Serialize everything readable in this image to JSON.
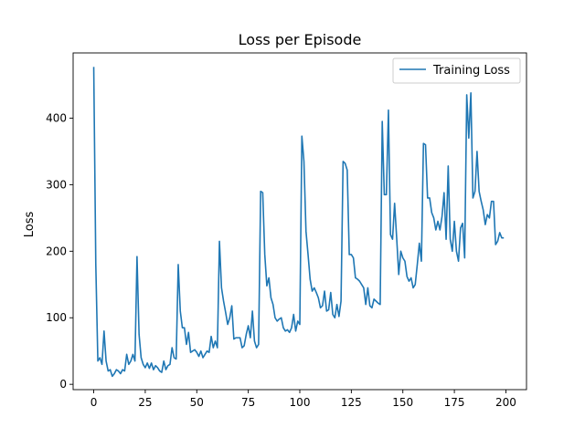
{
  "chart_data": {
    "type": "line",
    "title": "Loss per Episode",
    "xlabel": "",
    "ylabel": "Loss",
    "xlim": [
      -10,
      210
    ],
    "ylim": [
      -8,
      498
    ],
    "xticks": [
      0,
      25,
      50,
      75,
      100,
      125,
      150,
      175,
      200
    ],
    "yticks": [
      0,
      100,
      200,
      300,
      400
    ],
    "grid": false,
    "legend_position": "top-right",
    "colors": {
      "series": "#1f77b4"
    },
    "series": [
      {
        "name": "Training Loss",
        "x": [
          0,
          1,
          2,
          3,
          4,
          5,
          6,
          7,
          8,
          9,
          10,
          11,
          12,
          13,
          14,
          15,
          16,
          17,
          18,
          19,
          20,
          21,
          22,
          23,
          24,
          25,
          26,
          27,
          28,
          29,
          30,
          31,
          32,
          33,
          34,
          35,
          36,
          37,
          38,
          39,
          40,
          41,
          42,
          43,
          44,
          45,
          46,
          47,
          48,
          49,
          50,
          51,
          52,
          53,
          54,
          55,
          56,
          57,
          58,
          59,
          60,
          61,
          62,
          63,
          64,
          65,
          66,
          67,
          68,
          69,
          70,
          71,
          72,
          73,
          74,
          75,
          76,
          77,
          78,
          79,
          80,
          81,
          82,
          83,
          84,
          85,
          86,
          87,
          88,
          89,
          90,
          91,
          92,
          93,
          94,
          95,
          96,
          97,
          98,
          99,
          100,
          101,
          102,
          103,
          104,
          105,
          106,
          107,
          108,
          109,
          110,
          111,
          112,
          113,
          114,
          115,
          116,
          117,
          118,
          119,
          120,
          121,
          122,
          123,
          124,
          125,
          126,
          127,
          128,
          129,
          130,
          131,
          132,
          133,
          134,
          135,
          136,
          137,
          138,
          139,
          140,
          141,
          142,
          143,
          144,
          145,
          146,
          147,
          148,
          149,
          150,
          151,
          152,
          153,
          154,
          155,
          156,
          157,
          158,
          159,
          160,
          161,
          162,
          163,
          164,
          165,
          166,
          167,
          168,
          169,
          170,
          171,
          172,
          173,
          174,
          175,
          176,
          177,
          178,
          179,
          180,
          181,
          182,
          183,
          184,
          185,
          186,
          187,
          188,
          189,
          190,
          191,
          192,
          193,
          194,
          195,
          196,
          197,
          198,
          199
        ],
        "values": [
          477,
          180,
          35,
          40,
          30,
          80,
          35,
          20,
          22,
          12,
          16,
          22,
          20,
          16,
          22,
          20,
          45,
          30,
          35,
          45,
          35,
          192,
          75,
          40,
          30,
          25,
          32,
          24,
          32,
          22,
          28,
          25,
          20,
          18,
          35,
          22,
          28,
          30,
          55,
          40,
          38,
          180,
          110,
          85,
          85,
          60,
          78,
          48,
          50,
          52,
          48,
          42,
          50,
          40,
          45,
          50,
          48,
          72,
          55,
          65,
          55,
          215,
          145,
          125,
          108,
          90,
          100,
          118,
          68,
          70,
          70,
          70,
          55,
          58,
          75,
          88,
          70,
          110,
          65,
          55,
          60,
          290,
          288,
          195,
          148,
          160,
          130,
          120,
          100,
          95,
          98,
          100,
          85,
          80,
          82,
          78,
          85,
          105,
          80,
          95,
          90,
          373,
          335,
          230,
          195,
          158,
          140,
          145,
          138,
          130,
          115,
          118,
          140,
          110,
          112,
          138,
          105,
          100,
          120,
          102,
          125,
          335,
          332,
          322,
          195,
          195,
          190,
          160,
          158,
          155,
          150,
          145,
          120,
          145,
          118,
          115,
          128,
          125,
          122,
          120,
          395,
          285,
          285,
          412,
          225,
          218,
          272,
          220,
          165,
          200,
          190,
          185,
          162,
          155,
          160,
          145,
          150,
          180,
          212,
          185,
          362,
          360,
          280,
          280,
          258,
          250,
          232,
          245,
          232,
          252,
          288,
          218,
          328,
          218,
          200,
          245,
          200,
          185,
          235,
          242,
          190,
          435,
          370,
          438,
          280,
          290,
          350,
          290,
          275,
          262,
          240,
          255,
          250,
          275,
          275,
          210,
          215,
          228,
          220,
          220
        ]
      }
    ]
  }
}
